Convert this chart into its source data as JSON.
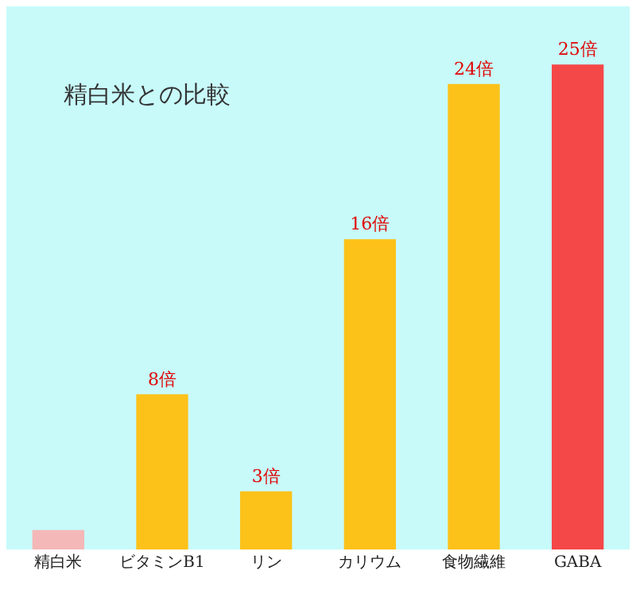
{
  "chart_data": {
    "type": "bar",
    "title": "精白米との比較",
    "categories": [
      "精白米",
      "ビタミンB1",
      "リン",
      "カリウム",
      "食物繊維",
      "GABA"
    ],
    "values": [
      1,
      8,
      3,
      16,
      24,
      25
    ],
    "colors": [
      "#f4b8b8",
      "#fcc21a",
      "#fcc21a",
      "#fcc21a",
      "#fcc21a",
      "#f44848"
    ],
    "value_labels": [
      null,
      "8倍",
      "3倍",
      "16倍",
      "24倍",
      "25倍"
    ],
    "grid": false,
    "legend": false
  }
}
